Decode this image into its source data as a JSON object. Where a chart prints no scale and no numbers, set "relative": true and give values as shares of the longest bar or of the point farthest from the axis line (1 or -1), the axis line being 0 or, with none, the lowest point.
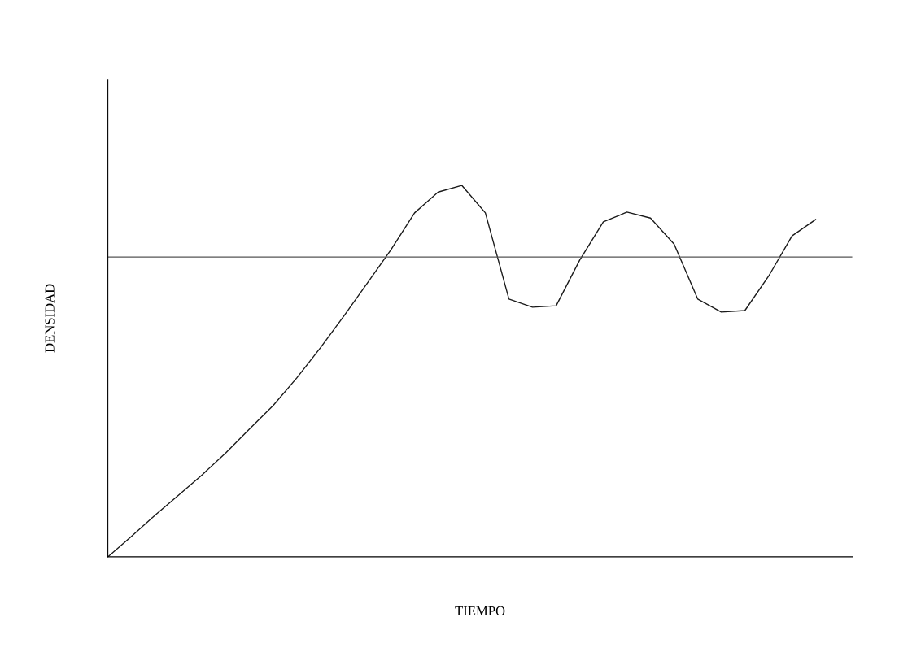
{
  "chart_data": {
    "type": "line",
    "relative": true,
    "xlabel": "TIEMPO",
    "ylabel": "DENSIDAD",
    "categories": [
      null,
      null,
      null,
      null,
      null,
      null,
      null,
      null,
      null,
      null,
      null,
      null,
      null,
      null,
      null,
      null,
      null,
      null,
      null,
      null,
      null,
      null,
      null,
      null,
      null,
      null,
      null,
      null,
      null,
      null,
      null
    ],
    "series": [
      {
        "color": "#1a1a1a",
        "values": [
          0,
          0.055,
          0.112,
          0.166,
          0.221,
          0.28,
          0.344,
          0.407,
          0.481,
          0.562,
          0.648,
          0.737,
          0.827,
          0.926,
          0.982,
          1.0,
          0.926,
          0.694,
          0.672,
          0.676,
          0.799,
          0.902,
          0.928,
          0.912,
          0.842,
          0.694,
          0.659,
          0.663,
          0.755,
          0.864,
          0.908
        ]
      }
    ],
    "ref_lines": [
      {
        "axis": "y",
        "value": 0.807,
        "color": "#555555"
      }
    ],
    "grid": false,
    "legend": false,
    "marker": "none",
    "line_style": "solid"
  }
}
